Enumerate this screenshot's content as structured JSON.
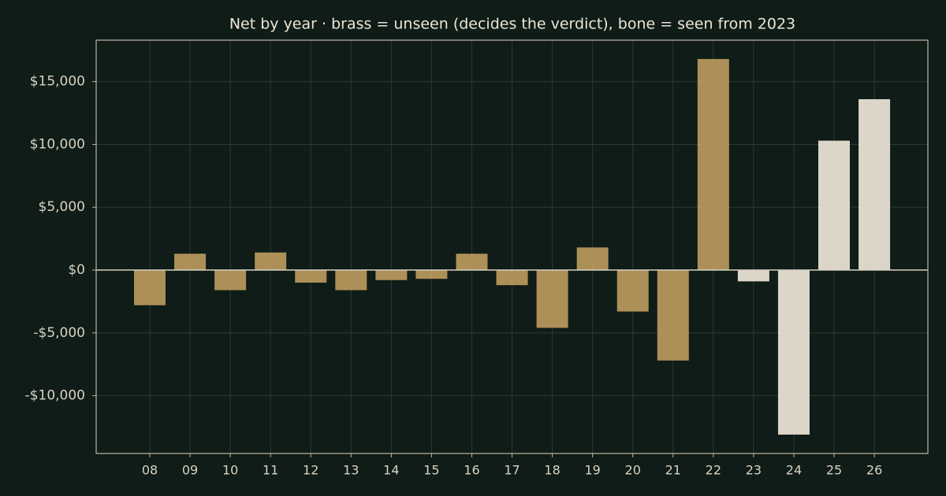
{
  "chart_data": {
    "type": "bar",
    "title": "Net by year  ·  brass = unseen (decides the verdict), bone = seen from 2023",
    "categories": [
      "08",
      "09",
      "10",
      "11",
      "12",
      "13",
      "14",
      "15",
      "16",
      "17",
      "18",
      "19",
      "20",
      "21",
      "22",
      "23",
      "24",
      "25",
      "26"
    ],
    "values": [
      -2800,
      1300,
      -1600,
      1400,
      -1000,
      -1600,
      -800,
      -700,
      1300,
      -1200,
      -4600,
      1800,
      -3300,
      -7200,
      16800,
      -900,
      -13100,
      10300,
      13600
    ],
    "colors": [
      "#b9995e",
      "#b9995e",
      "#b9995e",
      "#b9995e",
      "#b9995e",
      "#b9995e",
      "#b9995e",
      "#b9995e",
      "#b9995e",
      "#b9995e",
      "#b9995e",
      "#b9995e",
      "#b9995e",
      "#b9995e",
      "#b9995e",
      "#ebe4d6",
      "#ebe4d6",
      "#ebe4d6",
      "#ebe4d6"
    ],
    "ylim": [
      -14600,
      18300
    ],
    "yticks": [
      {
        "value": -10000,
        "label": "-$10,000"
      },
      {
        "value": -5000,
        "label": "-$5,000"
      },
      {
        "value": 0,
        "label": "$0"
      },
      {
        "value": 5000,
        "label": "$5,000"
      },
      {
        "value": 10000,
        "label": "$10,000"
      },
      {
        "value": 15000,
        "label": "$15,000"
      }
    ],
    "grid": true
  }
}
